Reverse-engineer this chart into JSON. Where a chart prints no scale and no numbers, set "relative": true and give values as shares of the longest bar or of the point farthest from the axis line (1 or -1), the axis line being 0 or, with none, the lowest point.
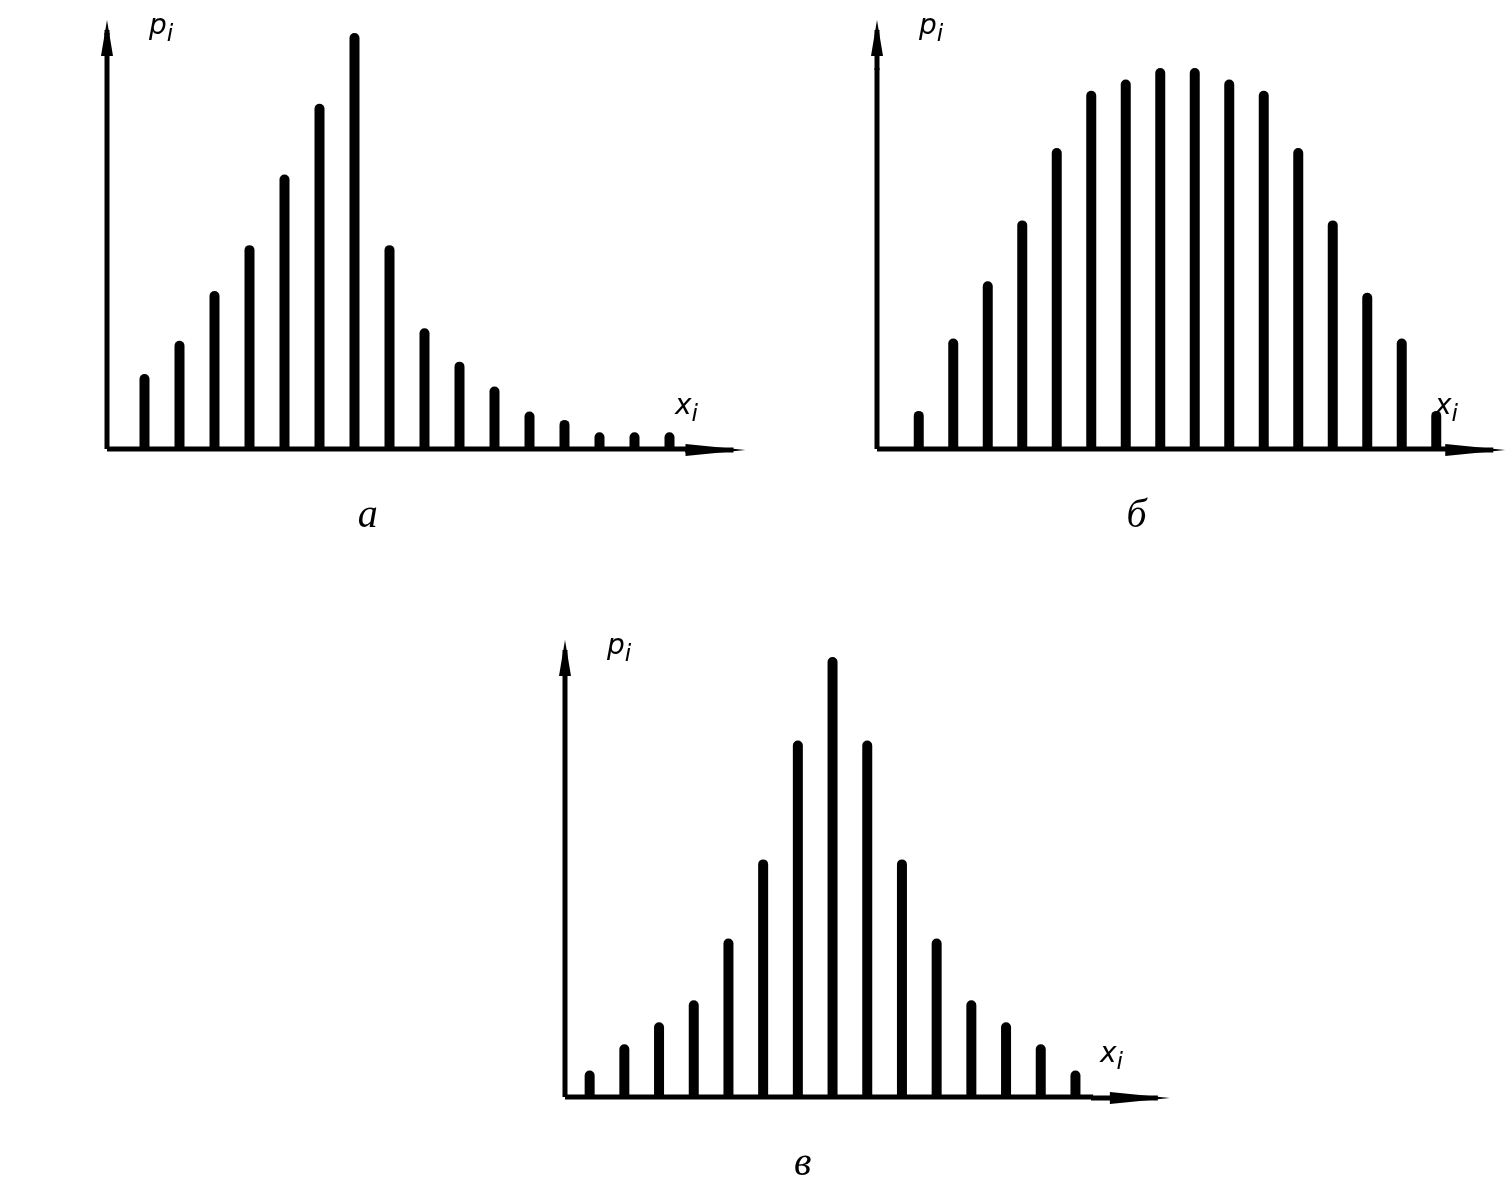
{
  "chart_data": [
    {
      "type": "bar",
      "title": "а",
      "xlabel": "x$_{i}$",
      "ylabel": "p$_{i}$",
      "relative": true,
      "color": "#000000",
      "grid": false,
      "categories": [
        null,
        null,
        null,
        null,
        null,
        null,
        null,
        null,
        null,
        null,
        null,
        null,
        null,
        null,
        null,
        null
      ],
      "values": [
        0.18,
        0.26,
        0.38,
        0.49,
        0.66,
        0.83,
        1,
        0.49,
        0.29,
        0.21,
        0.15,
        0.09,
        0.07,
        0.04,
        0.04,
        0.04
      ]
    },
    {
      "type": "bar",
      "title": "б",
      "xlabel": "x$_{i}$",
      "ylabel": "p$_{i}$",
      "relative": true,
      "color": "#000000",
      "grid": false,
      "categories": [
        null,
        null,
        null,
        null,
        null,
        null,
        null,
        null,
        null,
        null,
        null,
        null,
        null,
        null,
        null,
        null
      ],
      "values": [
        0.1,
        0.29,
        0.44,
        0.6,
        0.79,
        0.94,
        0.97,
        1,
        1,
        0.97,
        0.94,
        0.79,
        0.6,
        0.41,
        0.29,
        0.1
      ]
    },
    {
      "type": "bar",
      "title": "в",
      "xlabel": "x$_{i}$",
      "ylabel": "p$_{i}$",
      "relative": true,
      "color": "#000000",
      "grid": false,
      "categories": [
        null,
        null,
        null,
        null,
        null,
        null,
        null,
        null,
        null,
        null,
        null,
        null,
        null,
        null,
        null
      ],
      "values": [
        0.06,
        0.12,
        0.17,
        0.22,
        0.36,
        0.54,
        0.81,
        1,
        0.81,
        0.54,
        0.36,
        0.22,
        0.17,
        0.12,
        0.06
      ]
    }
  ]
}
